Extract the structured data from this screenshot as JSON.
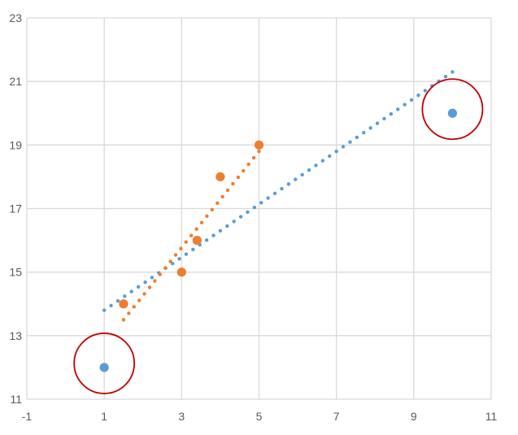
{
  "chart_data": {
    "type": "scatter",
    "title": "",
    "xlabel": "",
    "ylabel": "",
    "xlim": [
      -1,
      11
    ],
    "ylim": [
      11,
      23
    ],
    "x_ticks": [
      -1,
      1,
      3,
      5,
      7,
      9,
      11
    ],
    "y_ticks": [
      11,
      13,
      15,
      17,
      19,
      21,
      23
    ],
    "grid": true,
    "legend": "none",
    "series": [
      {
        "color": "#5b9bd5",
        "points": [
          [
            1,
            12
          ],
          [
            10,
            20
          ]
        ],
        "trendline": {
          "type": "linear",
          "x_range": [
            1,
            10
          ],
          "y_range": [
            13.8,
            21.3
          ],
          "style": "dotted"
        }
      },
      {
        "color": "#ed7d31",
        "points": [
          [
            1.5,
            14
          ],
          [
            3,
            15
          ],
          [
            3.4,
            16
          ],
          [
            4,
            18
          ],
          [
            5,
            19
          ]
        ],
        "trendline": {
          "type": "linear",
          "x_range": [
            1.5,
            5
          ],
          "y_range": [
            13.5,
            18.8
          ],
          "style": "dotted"
        }
      }
    ],
    "annotations": [
      {
        "shape": "circle",
        "center": [
          1,
          12
        ],
        "color": "#c00000"
      },
      {
        "shape": "circle",
        "center": [
          10,
          20
        ],
        "color": "#c00000"
      }
    ]
  }
}
